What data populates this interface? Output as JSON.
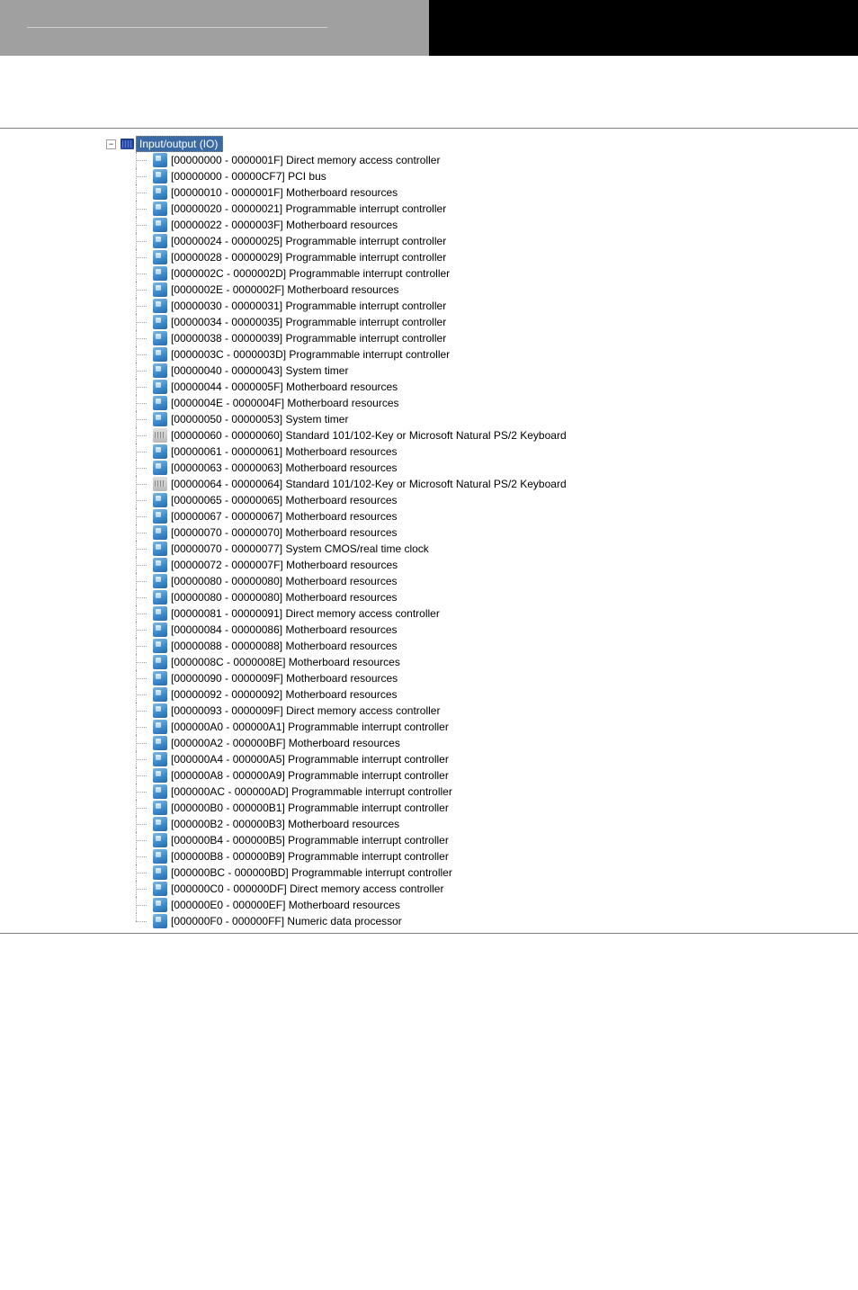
{
  "header": {
    "left_bg": "#a0a0a0",
    "right_bg": "#000000"
  },
  "tree": {
    "root_label": "Input/output (IO)",
    "root_selected_bg": "#3a6aa5",
    "root_selected_fg": "#ffffff",
    "expand_symbol": "−",
    "items": [
      {
        "range": "[00000000 - 0000001F]",
        "name": "Direct memory access controller",
        "icon": "chip"
      },
      {
        "range": "[00000000 - 00000CF7]",
        "name": "PCI bus",
        "icon": "chip"
      },
      {
        "range": "[00000010 - 0000001F]",
        "name": "Motherboard resources",
        "icon": "chip"
      },
      {
        "range": "[00000020 - 00000021]",
        "name": "Programmable interrupt controller",
        "icon": "chip"
      },
      {
        "range": "[00000022 - 0000003F]",
        "name": "Motherboard resources",
        "icon": "chip"
      },
      {
        "range": "[00000024 - 00000025]",
        "name": "Programmable interrupt controller",
        "icon": "chip"
      },
      {
        "range": "[00000028 - 00000029]",
        "name": "Programmable interrupt controller",
        "icon": "chip"
      },
      {
        "range": "[0000002C - 0000002D]",
        "name": "Programmable interrupt controller",
        "icon": "chip"
      },
      {
        "range": "[0000002E - 0000002F]",
        "name": "Motherboard resources",
        "icon": "chip"
      },
      {
        "range": "[00000030 - 00000031]",
        "name": "Programmable interrupt controller",
        "icon": "chip"
      },
      {
        "range": "[00000034 - 00000035]",
        "name": "Programmable interrupt controller",
        "icon": "chip"
      },
      {
        "range": "[00000038 - 00000039]",
        "name": "Programmable interrupt controller",
        "icon": "chip"
      },
      {
        "range": "[0000003C - 0000003D]",
        "name": "Programmable interrupt controller",
        "icon": "chip"
      },
      {
        "range": "[00000040 - 00000043]",
        "name": "System timer",
        "icon": "chip"
      },
      {
        "range": "[00000044 - 0000005F]",
        "name": "Motherboard resources",
        "icon": "chip"
      },
      {
        "range": "[0000004E - 0000004F]",
        "name": "Motherboard resources",
        "icon": "chip"
      },
      {
        "range": "[00000050 - 00000053]",
        "name": "System timer",
        "icon": "chip"
      },
      {
        "range": "[00000060 - 00000060]",
        "name": "Standard 101/102-Key or Microsoft Natural PS/2 Keyboard",
        "icon": "kbd"
      },
      {
        "range": "[00000061 - 00000061]",
        "name": "Motherboard resources",
        "icon": "chip"
      },
      {
        "range": "[00000063 - 00000063]",
        "name": "Motherboard resources",
        "icon": "chip"
      },
      {
        "range": "[00000064 - 00000064]",
        "name": "Standard 101/102-Key or Microsoft Natural PS/2 Keyboard",
        "icon": "kbd"
      },
      {
        "range": "[00000065 - 00000065]",
        "name": "Motherboard resources",
        "icon": "chip"
      },
      {
        "range": "[00000067 - 00000067]",
        "name": "Motherboard resources",
        "icon": "chip"
      },
      {
        "range": "[00000070 - 00000070]",
        "name": "Motherboard resources",
        "icon": "chip"
      },
      {
        "range": "[00000070 - 00000077]",
        "name": "System CMOS/real time clock",
        "icon": "chip"
      },
      {
        "range": "[00000072 - 0000007F]",
        "name": "Motherboard resources",
        "icon": "chip"
      },
      {
        "range": "[00000080 - 00000080]",
        "name": "Motherboard resources",
        "icon": "chip"
      },
      {
        "range": "[00000080 - 00000080]",
        "name": "Motherboard resources",
        "icon": "chip"
      },
      {
        "range": "[00000081 - 00000091]",
        "name": "Direct memory access controller",
        "icon": "chip"
      },
      {
        "range": "[00000084 - 00000086]",
        "name": "Motherboard resources",
        "icon": "chip"
      },
      {
        "range": "[00000088 - 00000088]",
        "name": "Motherboard resources",
        "icon": "chip"
      },
      {
        "range": "[0000008C - 0000008E]",
        "name": "Motherboard resources",
        "icon": "chip"
      },
      {
        "range": "[00000090 - 0000009F]",
        "name": "Motherboard resources",
        "icon": "chip"
      },
      {
        "range": "[00000092 - 00000092]",
        "name": "Motherboard resources",
        "icon": "chip"
      },
      {
        "range": "[00000093 - 0000009F]",
        "name": "Direct memory access controller",
        "icon": "chip"
      },
      {
        "range": "[000000A0 - 000000A1]",
        "name": "Programmable interrupt controller",
        "icon": "chip"
      },
      {
        "range": "[000000A2 - 000000BF]",
        "name": "Motherboard resources",
        "icon": "chip"
      },
      {
        "range": "[000000A4 - 000000A5]",
        "name": "Programmable interrupt controller",
        "icon": "chip"
      },
      {
        "range": "[000000A8 - 000000A9]",
        "name": "Programmable interrupt controller",
        "icon": "chip"
      },
      {
        "range": "[000000AC - 000000AD]",
        "name": "Programmable interrupt controller",
        "icon": "chip"
      },
      {
        "range": "[000000B0 - 000000B1]",
        "name": "Programmable interrupt controller",
        "icon": "chip"
      },
      {
        "range": "[000000B2 - 000000B3]",
        "name": "Motherboard resources",
        "icon": "chip"
      },
      {
        "range": "[000000B4 - 000000B5]",
        "name": "Programmable interrupt controller",
        "icon": "chip"
      },
      {
        "range": "[000000B8 - 000000B9]",
        "name": "Programmable interrupt controller",
        "icon": "chip"
      },
      {
        "range": "[000000BC - 000000BD]",
        "name": "Programmable interrupt controller",
        "icon": "chip"
      },
      {
        "range": "[000000C0 - 000000DF]",
        "name": "Direct memory access controller",
        "icon": "chip"
      },
      {
        "range": "[000000E0 - 000000EF]",
        "name": "Motherboard resources",
        "icon": "chip"
      },
      {
        "range": "[000000F0 - 000000FF]",
        "name": "Numeric data processor",
        "icon": "chip"
      }
    ]
  }
}
